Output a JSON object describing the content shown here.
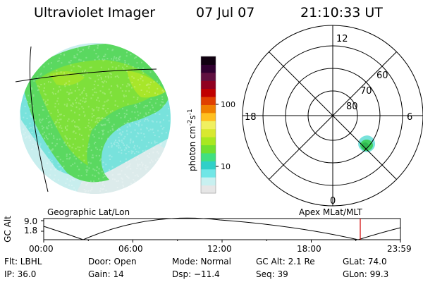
{
  "header": {
    "instrument": "Ultraviolet Imager",
    "date": "07 Jul 07",
    "time": "21:10:33 UT"
  },
  "colorbar": {
    "label": "photon cm",
    "label_sup1": "-2",
    "label_s": "s",
    "label_sup2": "-1",
    "tick_100": "100",
    "tick_10": "10",
    "colors": [
      "#e6e6e6",
      "#c8f0f0",
      "#70e6e6",
      "#30d0c8",
      "#40e080",
      "#70e030",
      "#a8e820",
      "#d8e830",
      "#f0f060",
      "#ffc020",
      "#f08000",
      "#e04000",
      "#c00000",
      "#900020",
      "#601040",
      "#300030",
      "#100010"
    ]
  },
  "polar": {
    "labels": {
      "top": "12",
      "left": "18",
      "right": "6",
      "bottom": "0",
      "lat60": "60",
      "lat70": "70",
      "lat80": "80"
    }
  },
  "timeline": {
    "left_title": "Geographic Lat/Lon",
    "right_title": "Apex  MLat/MLT",
    "y_axis_label": "GC Alt",
    "y_top": "9.0",
    "y_bottom": "1.8",
    "ticks": [
      "00:00",
      "06:00",
      "12:00",
      "18:00",
      "23:59"
    ],
    "marker_color": "#d00000"
  },
  "info": {
    "filter": "Flt: LBHL",
    "ip": "IP: 36.0",
    "door": "Door: Open",
    "gain": "Gain: 14",
    "mode": "Mode: Normal",
    "dsp": "Dsp:  −11.4",
    "gc_alt": "GC Alt: 2.1 Re",
    "seq": "Seq: 39",
    "glat": "GLat:  74.0",
    "glon": "GLon:  99.3"
  }
}
